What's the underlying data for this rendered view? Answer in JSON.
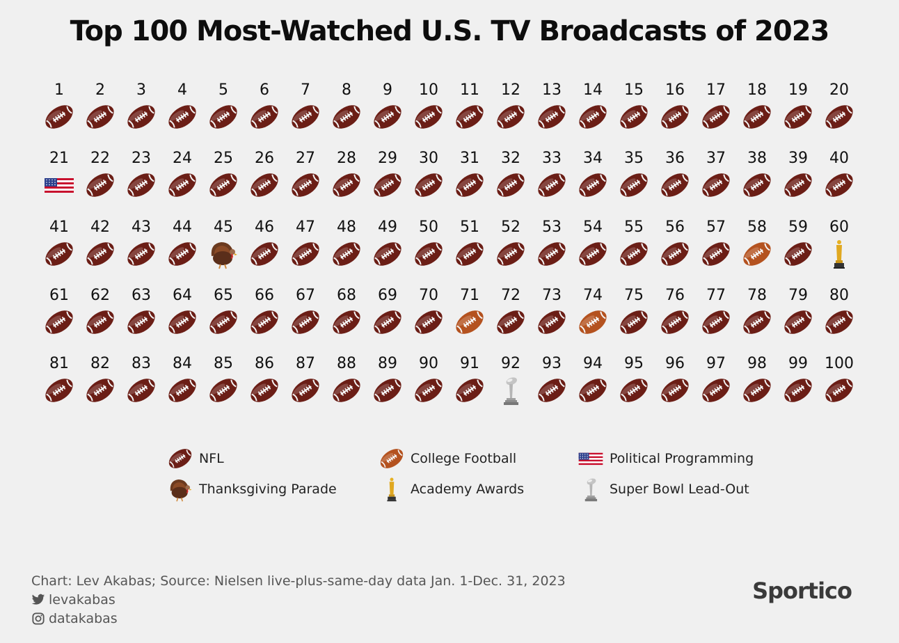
{
  "title": "Top 100 Most-Watched U.S. TV Broadcasts of 2023",
  "chart_data": {
    "type": "table",
    "title": "Top 100 Most-Watched U.S. TV Broadcasts of 2023",
    "categories": [
      {
        "key": "nfl",
        "label": "NFL",
        "icon": "nfl-football-icon",
        "color": "#6b1e16"
      },
      {
        "key": "college",
        "label": "College Football",
        "icon": "college-football-icon",
        "color": "#b4521f"
      },
      {
        "key": "political",
        "label": "Political Programming",
        "icon": "us-flag-icon",
        "color": "#c8102e"
      },
      {
        "key": "parade",
        "label": "Thanksgiving Parade",
        "icon": "turkey-icon",
        "color": "#5a2e1a"
      },
      {
        "key": "oscars",
        "label": "Academy Awards",
        "icon": "oscar-statue-icon",
        "color": "#e0a820"
      },
      {
        "key": "leadout",
        "label": "Super Bowl Lead-Out",
        "icon": "lombardi-trophy-icon",
        "color": "#9a9a9a"
      }
    ],
    "ranks": [
      "1",
      "2",
      "3",
      "4",
      "5",
      "6",
      "7",
      "8",
      "9",
      "10",
      "11",
      "12",
      "13",
      "14",
      "15",
      "16",
      "17",
      "18",
      "19",
      "20",
      "21",
      "22",
      "23",
      "24",
      "25",
      "26",
      "27",
      "28",
      "29",
      "30",
      "31",
      "32",
      "33",
      "34",
      "35",
      "36",
      "37",
      "38",
      "39",
      "40",
      "41",
      "42",
      "43",
      "44",
      "45",
      "46",
      "47",
      "48",
      "49",
      "50",
      "51",
      "52",
      "53",
      "54",
      "55",
      "56",
      "57",
      "58",
      "59",
      "60",
      "61",
      "62",
      "63",
      "64",
      "65",
      "66",
      "67",
      "68",
      "69",
      "70",
      "71",
      "72",
      "73",
      "74",
      "75",
      "76",
      "77",
      "78",
      "79",
      "80",
      "81",
      "82",
      "83",
      "84",
      "85",
      "86",
      "87",
      "88",
      "89",
      "90",
      "91",
      "92",
      "93",
      "94",
      "95",
      "96",
      "97",
      "98",
      "99",
      "100"
    ],
    "ranking": [
      "nfl",
      "nfl",
      "nfl",
      "nfl",
      "nfl",
      "nfl",
      "nfl",
      "nfl",
      "nfl",
      "nfl",
      "nfl",
      "nfl",
      "nfl",
      "nfl",
      "nfl",
      "nfl",
      "nfl",
      "nfl",
      "nfl",
      "nfl",
      "political",
      "nfl",
      "nfl",
      "nfl",
      "nfl",
      "nfl",
      "nfl",
      "nfl",
      "nfl",
      "nfl",
      "nfl",
      "nfl",
      "nfl",
      "nfl",
      "nfl",
      "nfl",
      "nfl",
      "nfl",
      "nfl",
      "nfl",
      "nfl",
      "nfl",
      "nfl",
      "nfl",
      "parade",
      "nfl",
      "nfl",
      "nfl",
      "nfl",
      "nfl",
      "nfl",
      "nfl",
      "nfl",
      "nfl",
      "nfl",
      "nfl",
      "nfl",
      "college",
      "nfl",
      "oscars",
      "nfl",
      "nfl",
      "nfl",
      "nfl",
      "nfl",
      "nfl",
      "nfl",
      "nfl",
      "nfl",
      "nfl",
      "college",
      "nfl",
      "nfl",
      "college",
      "nfl",
      "nfl",
      "nfl",
      "nfl",
      "nfl",
      "nfl",
      "nfl",
      "nfl",
      "nfl",
      "nfl",
      "nfl",
      "nfl",
      "nfl",
      "nfl",
      "nfl",
      "nfl",
      "nfl",
      "leadout",
      "nfl",
      "nfl",
      "nfl",
      "nfl",
      "nfl",
      "nfl",
      "nfl",
      "nfl"
    ]
  },
  "footer": {
    "source": "Chart: Lev Akabas; Source: Nielsen live-plus-same-day data Jan. 1-Dec. 31, 2023",
    "twitter": "levakabas",
    "instagram": "datakabas"
  },
  "brand": "Sportico"
}
